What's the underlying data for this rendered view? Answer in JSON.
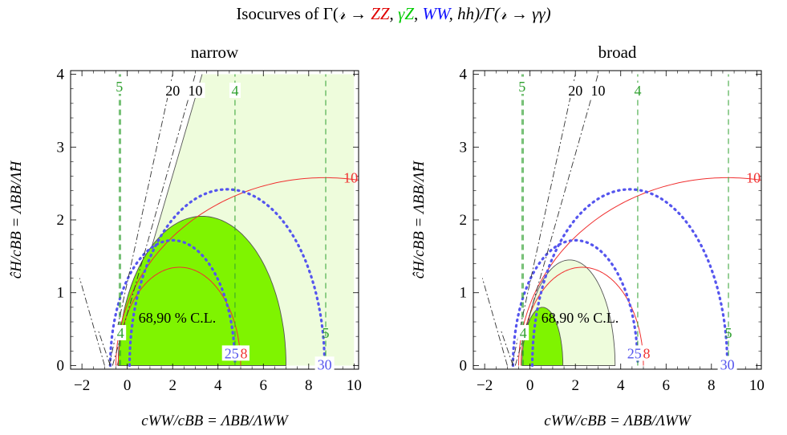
{
  "figure": {
    "title_prefix": "Isocurves of Γ(",
    "title_f": "𝓇",
    "title_arrow": " → ",
    "title_zz": "ZZ",
    "title_sep1": ", ",
    "title_gz": "γZ",
    "title_sep2": ", ",
    "title_ww": "WW",
    "title_sep3": ", hh)/Γ(",
    "title_f2": "𝓇",
    "title_end": " → γγ)"
  },
  "colors": {
    "contour_fill_dark": "#7ff400",
    "contour_fill_light": "#eefcdc",
    "zz_line": "#f03030",
    "gz_line": "#2fa02f",
    "ww_line": "#5555ee",
    "hh_line": "#333333"
  },
  "chart_data": [
    {
      "type": "line",
      "title": "narrow",
      "xlabel": "cWW/cBB = ΛBB/ΛWW",
      "ylabel": "ĉH/cBB = ΛBB/Λ̂H",
      "xlim": [
        -2.5,
        10.2
      ],
      "ylim": [
        -0.05,
        4.05
      ],
      "xticks": [
        -2,
        0,
        2,
        4,
        6,
        8,
        10
      ],
      "yticks": [
        0,
        1,
        2,
        3,
        4
      ],
      "regions": [
        {
          "name": "68 % C.L.",
          "shape": "ellipse",
          "center": [
            3.3,
            0
          ],
          "semi_axes": [
            3.7,
            2.05
          ],
          "fill": "dark"
        },
        {
          "name": "90 % C.L.",
          "shape": "wedge",
          "apex": [
            -0.45,
            0
          ],
          "upper_left": [
            3.3,
            4.0
          ],
          "right_x": 10.0,
          "fill": "light"
        }
      ],
      "region_label": "68,90 % C.L.",
      "isocurves": [
        {
          "kind": "ZZ",
          "label": "8",
          "center": [
            2.3,
            0
          ],
          "semi_axes": [
            2.7,
            1.35
          ],
          "style": "solid"
        },
        {
          "kind": "ZZ",
          "label": "10",
          "center": [
            8.7,
            0
          ],
          "semi_axes": [
            9.2,
            2.58
          ],
          "style": "solid"
        },
        {
          "kind": "WW",
          "label": "25",
          "center": [
            2.0,
            0
          ],
          "semi_axes": [
            2.75,
            1.72
          ],
          "style": "dotted"
        },
        {
          "kind": "WW",
          "label": "30",
          "center": [
            4.4,
            0
          ],
          "semi_axes": [
            4.3,
            2.42
          ],
          "style": "dotted"
        },
        {
          "kind": "γZ",
          "label": "4",
          "x": -0.3,
          "style": "dashed"
        },
        {
          "kind": "γZ",
          "label": "4",
          "x": 4.75,
          "style": "dashed"
        },
        {
          "kind": "γZ",
          "label": "5",
          "x": -0.35,
          "style": "dashed"
        },
        {
          "kind": "γZ",
          "label": "5",
          "x": 8.75,
          "style": "dashed"
        },
        {
          "kind": "hh",
          "label": "20",
          "points": [
            [
              -0.8,
              0
            ],
            [
              2.0,
              4.0
            ]
          ],
          "style": "dashdot"
        },
        {
          "kind": "hh",
          "label": "10",
          "points": [
            [
              -0.65,
              0
            ],
            [
              3.0,
              4.0
            ]
          ],
          "style": "dashdot"
        },
        {
          "kind": "hh",
          "label": "",
          "points": [
            [
              -1.0,
              0
            ],
            [
              -2.1,
              1.2
            ]
          ],
          "style": "dashdot"
        },
        {
          "kind": "hh",
          "label": "",
          "points": [
            [
              -0.75,
              0
            ],
            [
              -1.3,
              0.5
            ]
          ],
          "style": "dashdot"
        }
      ],
      "isocurve_labels": {
        "zz_8": "8",
        "zz_10": "10",
        "ww_25": "25",
        "ww_30": "30",
        "gz_4_a": "4",
        "gz_4_b": "4",
        "gz_5_a": "5",
        "gz_5_b": "5",
        "hh_20": "20",
        "hh_10": "10"
      }
    },
    {
      "type": "line",
      "title": "broad",
      "xlabel": "cWW/cBB = ΛBB/ΛWW",
      "ylabel": "ĉH/cBB = ΛBB/Λ̂H",
      "xlim": [
        -2.5,
        10.2
      ],
      "ylim": [
        -0.05,
        4.05
      ],
      "xticks": [
        -2,
        0,
        2,
        4,
        6,
        8,
        10
      ],
      "yticks": [
        0,
        1,
        2,
        3,
        4
      ],
      "regions": [
        {
          "name": "90 % C.L.",
          "shape": "ellipse",
          "center": [
            1.75,
            0
          ],
          "semi_axes": [
            2.0,
            1.45
          ],
          "fill": "light"
        },
        {
          "name": "68 % C.L.",
          "shape": "ellipse",
          "center": [
            0.55,
            0
          ],
          "semi_axes": [
            0.9,
            0.8
          ],
          "fill": "dark"
        }
      ],
      "region_label": "68,90 % C.L.",
      "isocurves": [
        {
          "kind": "ZZ",
          "label": "8",
          "center": [
            2.3,
            0
          ],
          "semi_axes": [
            2.7,
            1.35
          ],
          "style": "solid"
        },
        {
          "kind": "ZZ",
          "label": "10",
          "center": [
            8.7,
            0
          ],
          "semi_axes": [
            9.2,
            2.58
          ],
          "style": "solid"
        },
        {
          "kind": "WW",
          "label": "25",
          "center": [
            2.0,
            0
          ],
          "semi_axes": [
            2.75,
            1.72
          ],
          "style": "dotted"
        },
        {
          "kind": "WW",
          "label": "30",
          "center": [
            4.4,
            0
          ],
          "semi_axes": [
            4.3,
            2.42
          ],
          "style": "dotted"
        },
        {
          "kind": "γZ",
          "label": "4",
          "x": -0.3,
          "style": "dashed"
        },
        {
          "kind": "γZ",
          "label": "4",
          "x": 4.75,
          "style": "dashed"
        },
        {
          "kind": "γZ",
          "label": "5",
          "x": -0.35,
          "style": "dashed"
        },
        {
          "kind": "γZ",
          "label": "5",
          "x": 8.75,
          "style": "dashed"
        },
        {
          "kind": "hh",
          "label": "20",
          "points": [
            [
              -0.8,
              0
            ],
            [
              2.0,
              4.0
            ]
          ],
          "style": "dashdot"
        },
        {
          "kind": "hh",
          "label": "10",
          "points": [
            [
              -0.65,
              0
            ],
            [
              3.0,
              4.0
            ]
          ],
          "style": "dashdot"
        },
        {
          "kind": "hh",
          "label": "",
          "points": [
            [
              -1.0,
              0
            ],
            [
              -2.1,
              1.2
            ]
          ],
          "style": "dashdot"
        },
        {
          "kind": "hh",
          "label": "",
          "points": [
            [
              -0.75,
              0
            ],
            [
              -1.3,
              0.5
            ]
          ],
          "style": "dashdot"
        }
      ],
      "isocurve_labels": {
        "zz_8": "8",
        "zz_10": "10",
        "ww_25": "25",
        "ww_30": "30",
        "gz_4_a": "4",
        "gz_4_b": "4",
        "gz_5_a": "5",
        "gz_5_b": "5",
        "hh_20": "20",
        "hh_10": "10"
      }
    }
  ]
}
